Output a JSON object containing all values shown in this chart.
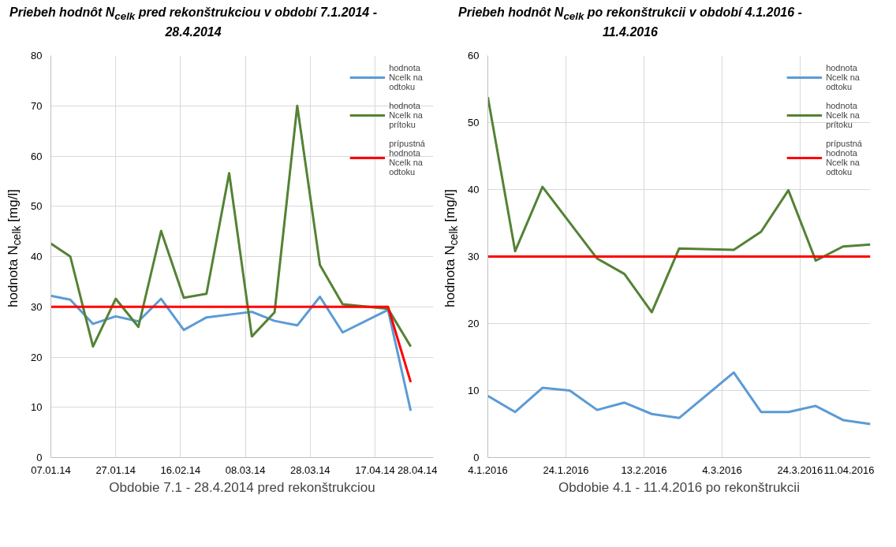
{
  "chart_data": [
    {
      "type": "line",
      "title": "Priebeh hodnôt N$_{celk}$ pred rekonštrukciou v období 7.1.2014 - 28.4.2014",
      "xlabel": "Obdobie 7.1 - 28.4.2014 pred rekonštrukciou",
      "ylabel": "hodnota N$_{celk}$ [mg/l]",
      "xlim": [
        "2014-01-07",
        "2014-05-05"
      ],
      "xticks": [
        {
          "value": "2014-01-07",
          "label": "07.01.14"
        },
        {
          "value": "2014-01-27",
          "label": "27.01.14"
        },
        {
          "value": "2014-02-16",
          "label": "16.02.14"
        },
        {
          "value": "2014-03-08",
          "label": "08.03.14"
        },
        {
          "value": "2014-03-28",
          "label": "28.03.14"
        },
        {
          "value": "2014-04-17",
          "label": "17.04.14"
        },
        {
          "value": "2014-05-05",
          "label": "28.04.14"
        }
      ],
      "ylim": [
        0,
        80
      ],
      "yticks": [
        0,
        10,
        20,
        30,
        40,
        50,
        60,
        70,
        80
      ],
      "grid": true,
      "legend": "right",
      "series": [
        {
          "name": "hodnota Ncelk na odtoku",
          "color": "#5b9bd5",
          "x": [
            "2014-01-07",
            "2014-01-13",
            "2014-01-20",
            "2014-01-27",
            "2014-02-03",
            "2014-02-10",
            "2014-02-17",
            "2014-02-24",
            "2014-03-10",
            "2014-03-17",
            "2014-03-24",
            "2014-03-31",
            "2014-04-07",
            "2014-04-21",
            "2014-04-28"
          ],
          "values": [
            32.2,
            31.4,
            26.6,
            28.1,
            27.1,
            31.6,
            25.4,
            27.9,
            29.0,
            27.2,
            26.3,
            32.0,
            24.9,
            29.4,
            9.3
          ]
        },
        {
          "name": "hodnota Ncelk na prítoku",
          "color": "#548235",
          "x": [
            "2014-01-07",
            "2014-01-13",
            "2014-01-20",
            "2014-01-27",
            "2014-02-03",
            "2014-02-10",
            "2014-02-17",
            "2014-02-24",
            "2014-03-03",
            "2014-03-10",
            "2014-03-17",
            "2014-03-24",
            "2014-03-31",
            "2014-04-07",
            "2014-04-21",
            "2014-04-28"
          ],
          "values": [
            42.6,
            40,
            22.1,
            31.6,
            26.0,
            45.1,
            31.8,
            32.6,
            56.6,
            24.1,
            28.9,
            70,
            38.3,
            30.5,
            29.6,
            22.1
          ]
        },
        {
          "name": "prípustná hodnota Ncelk na odtoku",
          "color": "#ff0000",
          "x": [
            "2014-01-07",
            "2014-04-21",
            "2014-04-28"
          ],
          "values": [
            30,
            30,
            15
          ]
        }
      ]
    },
    {
      "type": "line",
      "title": "Priebeh hodnôt N$_{celk}$ po rekonštrukcii v období 4.1.2016 - 11.4.2016",
      "xlabel": "Obdobie 4.1 - 11.4.2016 po rekonštrukcii",
      "ylabel": "hodnota N$_{celk}$ [mg/l]",
      "xlim": [
        "2016-01-04",
        "2016-04-11"
      ],
      "xticks": [
        {
          "value": "2016-01-04",
          "label": "4.1.2016"
        },
        {
          "value": "2016-01-24",
          "label": "24.1.2016"
        },
        {
          "value": "2016-02-13",
          "label": "13.2.2016"
        },
        {
          "value": "2016-03-04",
          "label": "4.3.2016"
        },
        {
          "value": "2016-03-24",
          "label": "24.3.2016"
        },
        {
          "value": "2016-04-11",
          "label": "11.04.2016"
        }
      ],
      "ylim": [
        0,
        60
      ],
      "yticks": [
        0,
        10,
        20,
        30,
        40,
        50,
        60
      ],
      "grid": true,
      "legend": "right",
      "series": [
        {
          "name": "hodnota Ncelk na odtoku",
          "color": "#5b9bd5",
          "x": [
            "2016-01-04",
            "2016-01-11",
            "2016-01-18",
            "2016-01-25",
            "2016-02-01",
            "2016-02-08",
            "2016-02-15",
            "2016-02-22",
            "2016-03-07",
            "2016-03-14",
            "2016-03-21",
            "2016-03-28",
            "2016-04-04",
            "2016-04-11"
          ],
          "values": [
            9.2,
            6.8,
            10.4,
            10.0,
            7.1,
            8.2,
            6.5,
            5.9,
            12.7,
            6.8,
            6.8,
            7.7,
            5.6,
            5.0
          ]
        },
        {
          "name": "hodnota Ncelk na prítoku",
          "color": "#548235",
          "x": [
            "2016-01-04",
            "2016-01-11",
            "2016-01-18",
            "2016-02-01",
            "2016-02-08",
            "2016-02-15",
            "2016-02-22",
            "2016-03-07",
            "2016-03-14",
            "2016-03-21",
            "2016-03-28",
            "2016-04-04",
            "2016-04-11"
          ],
          "values": [
            53.8,
            30.8,
            40.4,
            29.7,
            27.4,
            21.7,
            31.2,
            31.0,
            33.7,
            39.9,
            29.4,
            31.5,
            31.8
          ]
        },
        {
          "name": "prípustná hodnota Ncelk na odtoku",
          "color": "#ff0000",
          "x": [
            "2016-01-04",
            "2016-04-11"
          ],
          "values": [
            30,
            30
          ]
        }
      ]
    }
  ]
}
